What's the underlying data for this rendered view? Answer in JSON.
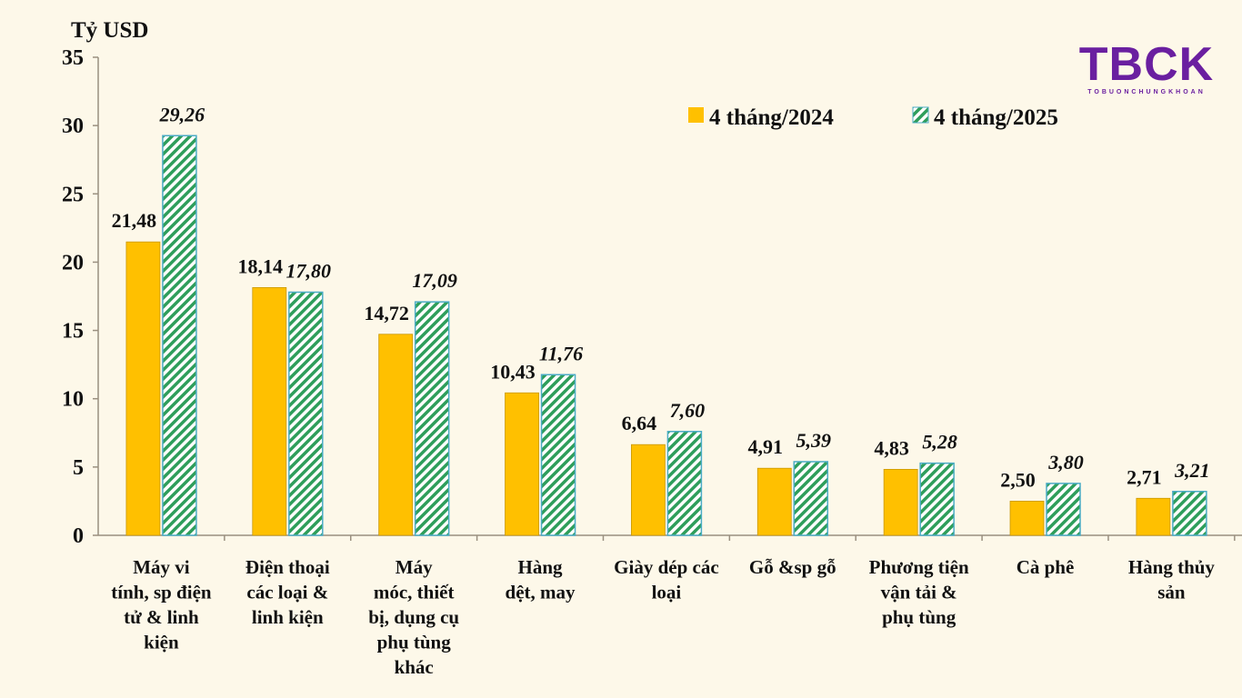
{
  "chart_data": {
    "type": "bar",
    "ylabel": "Tỷ USD",
    "ylim": [
      0,
      35
    ],
    "yticks": [
      0,
      5,
      10,
      15,
      20,
      25,
      30,
      35
    ],
    "grid": false,
    "legend_position": "top-right",
    "categories": [
      [
        "Máy vi",
        "tính, sp điện",
        "tử & linh",
        "kiện"
      ],
      [
        "Điện thoại",
        "các loại &",
        "linh kiện"
      ],
      [
        "Máy",
        "móc, thiết",
        "bị, dụng cụ",
        "phụ tùng",
        "khác"
      ],
      [
        "Hàng",
        "dệt, may"
      ],
      [
        "Giày dép các",
        "loại"
      ],
      [
        "Gỗ &sp gỗ"
      ],
      [
        "Phương tiện",
        "vận tải &",
        "phụ tùng"
      ],
      [
        "Cà phê"
      ],
      [
        "Hàng thủy",
        "sản"
      ]
    ],
    "series": [
      {
        "name": "4 tháng/2024",
        "values": [
          21.48,
          18.14,
          14.72,
          10.43,
          6.64,
          4.91,
          4.83,
          2.5,
          2.71
        ],
        "labels": [
          "21,48",
          "18,14",
          "14,72",
          "10,43",
          "6,64",
          "4,91",
          "4,83",
          "2,50",
          "2,71"
        ],
        "color": "#ffc000",
        "pattern": "solid"
      },
      {
        "name": "4 tháng/2025",
        "values": [
          29.26,
          17.8,
          17.09,
          11.76,
          7.6,
          5.39,
          5.28,
          3.8,
          3.21
        ],
        "labels": [
          "29,26",
          "17,80",
          "17,09",
          "11,76",
          "7,60",
          "5,39",
          "5,28",
          "3,80",
          "3,21"
        ],
        "color": "#2e9e5b",
        "border": "#4bacc6",
        "pattern": "diagonal-hatch"
      }
    ]
  },
  "logo": {
    "text": "TBCK",
    "subtext": "TOBUONCHUNGKHOAN"
  }
}
